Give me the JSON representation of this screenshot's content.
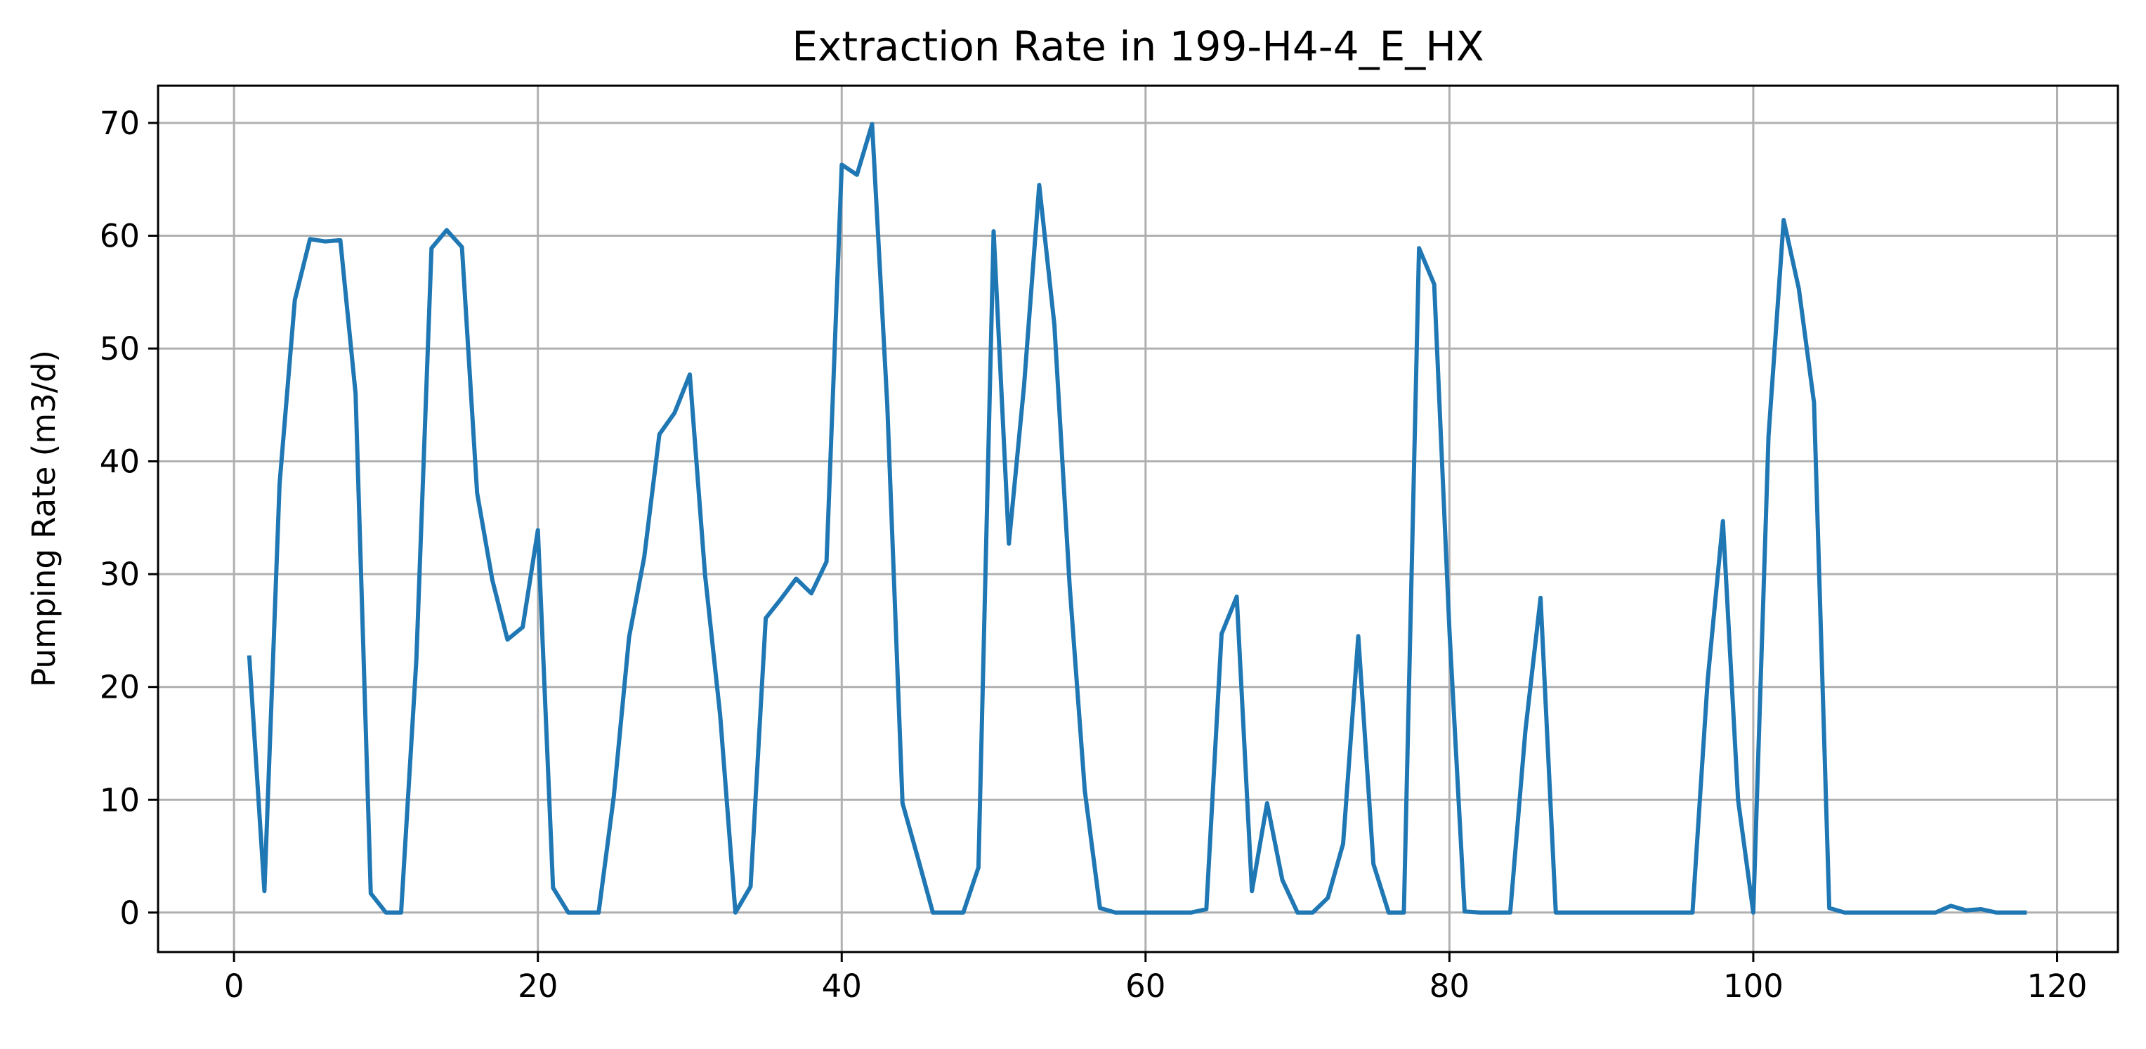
{
  "chart_data": {
    "type": "line",
    "title": "Extraction Rate in 199-H4-4_E_HX",
    "xlabel": "",
    "ylabel": "Pumping Rate (m3/d)",
    "xlim": [
      -5,
      124
    ],
    "ylim": [
      -3.5,
      73.3
    ],
    "xticks": [
      0,
      20,
      40,
      60,
      80,
      100,
      120
    ],
    "yticks": [
      0,
      10,
      20,
      30,
      40,
      50,
      60,
      70
    ],
    "grid": true,
    "legend": "none",
    "series": [
      {
        "color": "#1f77b4",
        "x": [
          1,
          2,
          3,
          4,
          5,
          6,
          7,
          8,
          9,
          10,
          11,
          12,
          13,
          14,
          15,
          16,
          17,
          18,
          19,
          20,
          21,
          22,
          23,
          24,
          25,
          26,
          27,
          28,
          29,
          30,
          31,
          32,
          33,
          34,
          35,
          36,
          37,
          38,
          39,
          40,
          41,
          42,
          43,
          44,
          45,
          46,
          47,
          48,
          49,
          50,
          51,
          52,
          53,
          54,
          55,
          56,
          57,
          58,
          59,
          60,
          61,
          62,
          63,
          64,
          65,
          66,
          67,
          68,
          69,
          70,
          71,
          72,
          73,
          74,
          75,
          76,
          77,
          78,
          79,
          80,
          81,
          82,
          83,
          84,
          85,
          86,
          87,
          88,
          89,
          90,
          91,
          92,
          93,
          94,
          95,
          96,
          97,
          98,
          99,
          100,
          101,
          102,
          103,
          104,
          105,
          106,
          107,
          108,
          109,
          110,
          111,
          112,
          113,
          114,
          115,
          116,
          117,
          118
        ],
        "y": [
          22.8,
          1.9,
          38.0,
          54.3,
          59.7,
          59.5,
          59.6,
          46.0,
          1.7,
          0.0,
          0.0,
          22.4,
          58.9,
          60.5,
          59.0,
          37.2,
          29.5,
          24.2,
          25.3,
          33.9,
          2.2,
          0.0,
          0.0,
          0.0,
          10.3,
          24.4,
          31.5,
          42.4,
          44.3,
          47.7,
          30.0,
          17.5,
          0.0,
          2.3,
          26.1,
          27.8,
          29.6,
          28.3,
          31.1,
          66.3,
          65.4,
          69.9,
          45.0,
          9.7,
          4.9,
          0.0,
          0.0,
          0.0,
          4.0,
          60.4,
          32.7,
          46.7,
          64.5,
          52.1,
          29.0,
          10.8,
          0.4,
          0.0,
          0.0,
          0.0,
          0.0,
          0.0,
          0.0,
          0.3,
          24.7,
          28.0,
          1.9,
          9.7,
          2.9,
          0.0,
          0.0,
          1.3,
          6.1,
          24.5,
          4.3,
          0.0,
          0.0,
          58.9,
          55.7,
          25.0,
          0.1,
          0.0,
          0.0,
          0.0,
          16.1,
          27.9,
          0.0,
          0.0,
          0.0,
          0.0,
          0.0,
          0.0,
          0.0,
          0.0,
          0.0,
          0.0,
          20.6,
          34.7,
          10.0,
          0.0,
          42.2,
          61.4,
          55.3,
          45.2,
          0.4,
          0.0,
          0.0,
          0.0,
          0.0,
          0.0,
          0.0,
          0.0,
          0.6,
          0.2,
          0.3,
          0.0,
          0.0,
          0.0
        ]
      }
    ]
  }
}
